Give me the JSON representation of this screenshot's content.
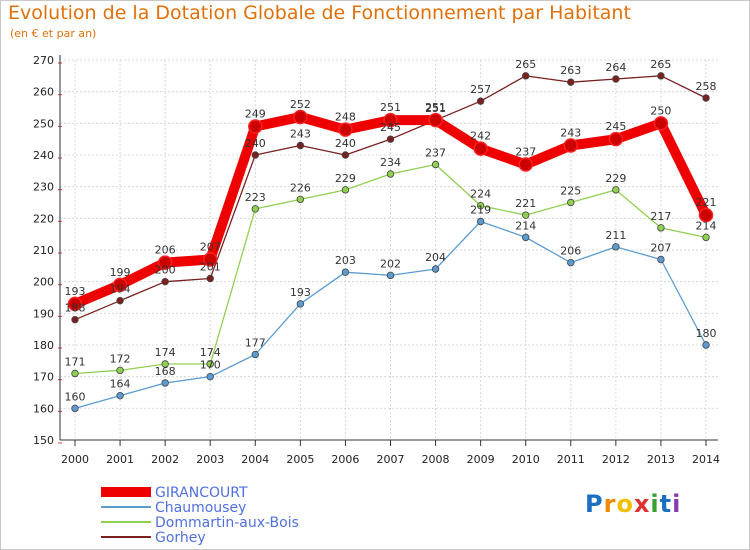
{
  "title": "Evolution de la Dotation Globale de Fonctionnement par Habitant",
  "subtitle": "(en € et par an)",
  "logo": {
    "text": "Proxiti",
    "letters": [
      "P",
      "r",
      "o",
      "x",
      "i",
      "t",
      "i"
    ],
    "colors": [
      "#1a6fc0",
      "#f08a00",
      "#f0c000",
      "#e03030",
      "#3aa030",
      "#1a6fc0",
      "#8a3ab0"
    ]
  },
  "chart_data": {
    "type": "line",
    "title": "Evolution de la Dotation Globale de Fonctionnement par Habitant",
    "subtitle": "(en € et par an)",
    "xlabel": "",
    "ylabel": "",
    "ylim": [
      150,
      270
    ],
    "yticks": [
      150,
      160,
      170,
      180,
      190,
      200,
      210,
      220,
      230,
      240,
      250,
      260,
      270
    ],
    "categories": [
      "2000",
      "2001",
      "2002",
      "2003",
      "2004",
      "2005",
      "2006",
      "2007",
      "2008",
      "2009",
      "2010",
      "2011",
      "2012",
      "2013",
      "2014"
    ],
    "grid": true,
    "legend_position": "bottom-left",
    "series": [
      {
        "name": "GIRANCOURT",
        "color": "#ee0000",
        "values": [
          193,
          199,
          206,
          207,
          249,
          252,
          248,
          251,
          251,
          242,
          237,
          243,
          245,
          250,
          221
        ]
      },
      {
        "name": "Chaumousey",
        "color": "#5b9bd0",
        "values": [
          160,
          164,
          168,
          170,
          177,
          193,
          203,
          202,
          204,
          219,
          214,
          206,
          211,
          207,
          180
        ]
      },
      {
        "name": "Dommartin-aux-Bois",
        "color": "#90d050",
        "values": [
          171,
          172,
          174,
          174,
          223,
          226,
          229,
          234,
          237,
          224,
          221,
          225,
          229,
          217,
          214
        ]
      },
      {
        "name": "Gorhey",
        "color": "#7a2020",
        "values": [
          188,
          194,
          200,
          201,
          240,
          243,
          240,
          245,
          251,
          257,
          265,
          263,
          264,
          265,
          258
        ]
      }
    ]
  }
}
